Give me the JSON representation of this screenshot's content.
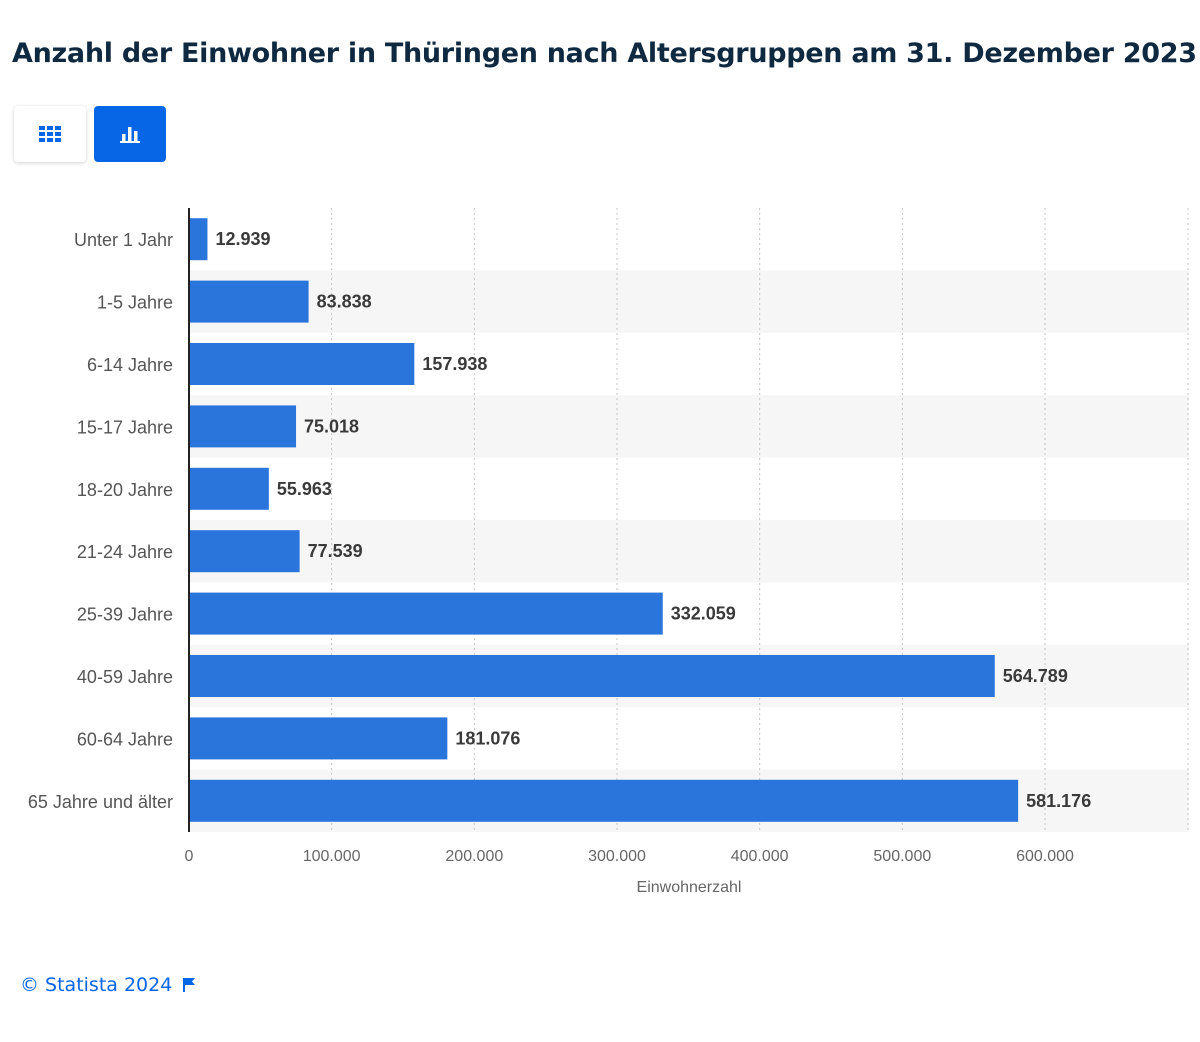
{
  "colors": {
    "accent": "#0666e5",
    "bar": "#2a75db",
    "title": "#0f2941"
  },
  "header": {
    "title": "Anzahl der Einwohner in Thüringen nach Altersgruppen am 31. Dezember 2023"
  },
  "view_toggle": {
    "active": "chart",
    "icons": [
      "table-grid-icon",
      "bar-chart-icon"
    ]
  },
  "footer": {
    "copyright": "© Statista 2024",
    "icon": "flag-icon"
  },
  "chart_data": {
    "type": "bar",
    "orientation": "horizontal",
    "categories": [
      "Unter 1 Jahr",
      "1-5 Jahre",
      "6-14 Jahre",
      "15-17 Jahre",
      "18-20 Jahre",
      "21-24 Jahre",
      "25-39 Jahre",
      "40-59 Jahre",
      "60-64 Jahre",
      "65 Jahre und älter"
    ],
    "values": [
      12939,
      83838,
      157938,
      75018,
      55963,
      77539,
      332059,
      564789,
      181076,
      581176
    ],
    "value_labels": [
      "12.939",
      "83.838",
      "157.938",
      "75.018",
      "55.963",
      "77.539",
      "332.059",
      "564.789",
      "181.076",
      "581.176"
    ],
    "xlabel": "Einwohnerzahl",
    "ylabel": "",
    "xlim": [
      0,
      700000
    ],
    "ticks": [
      0,
      100000,
      200000,
      300000,
      400000,
      500000,
      600000
    ],
    "tick_labels": [
      "0",
      "100.000",
      "200.000",
      "300.000",
      "400.000",
      "500.000",
      "600.000"
    ],
    "grid": "vertical dotted",
    "legend": "none"
  }
}
